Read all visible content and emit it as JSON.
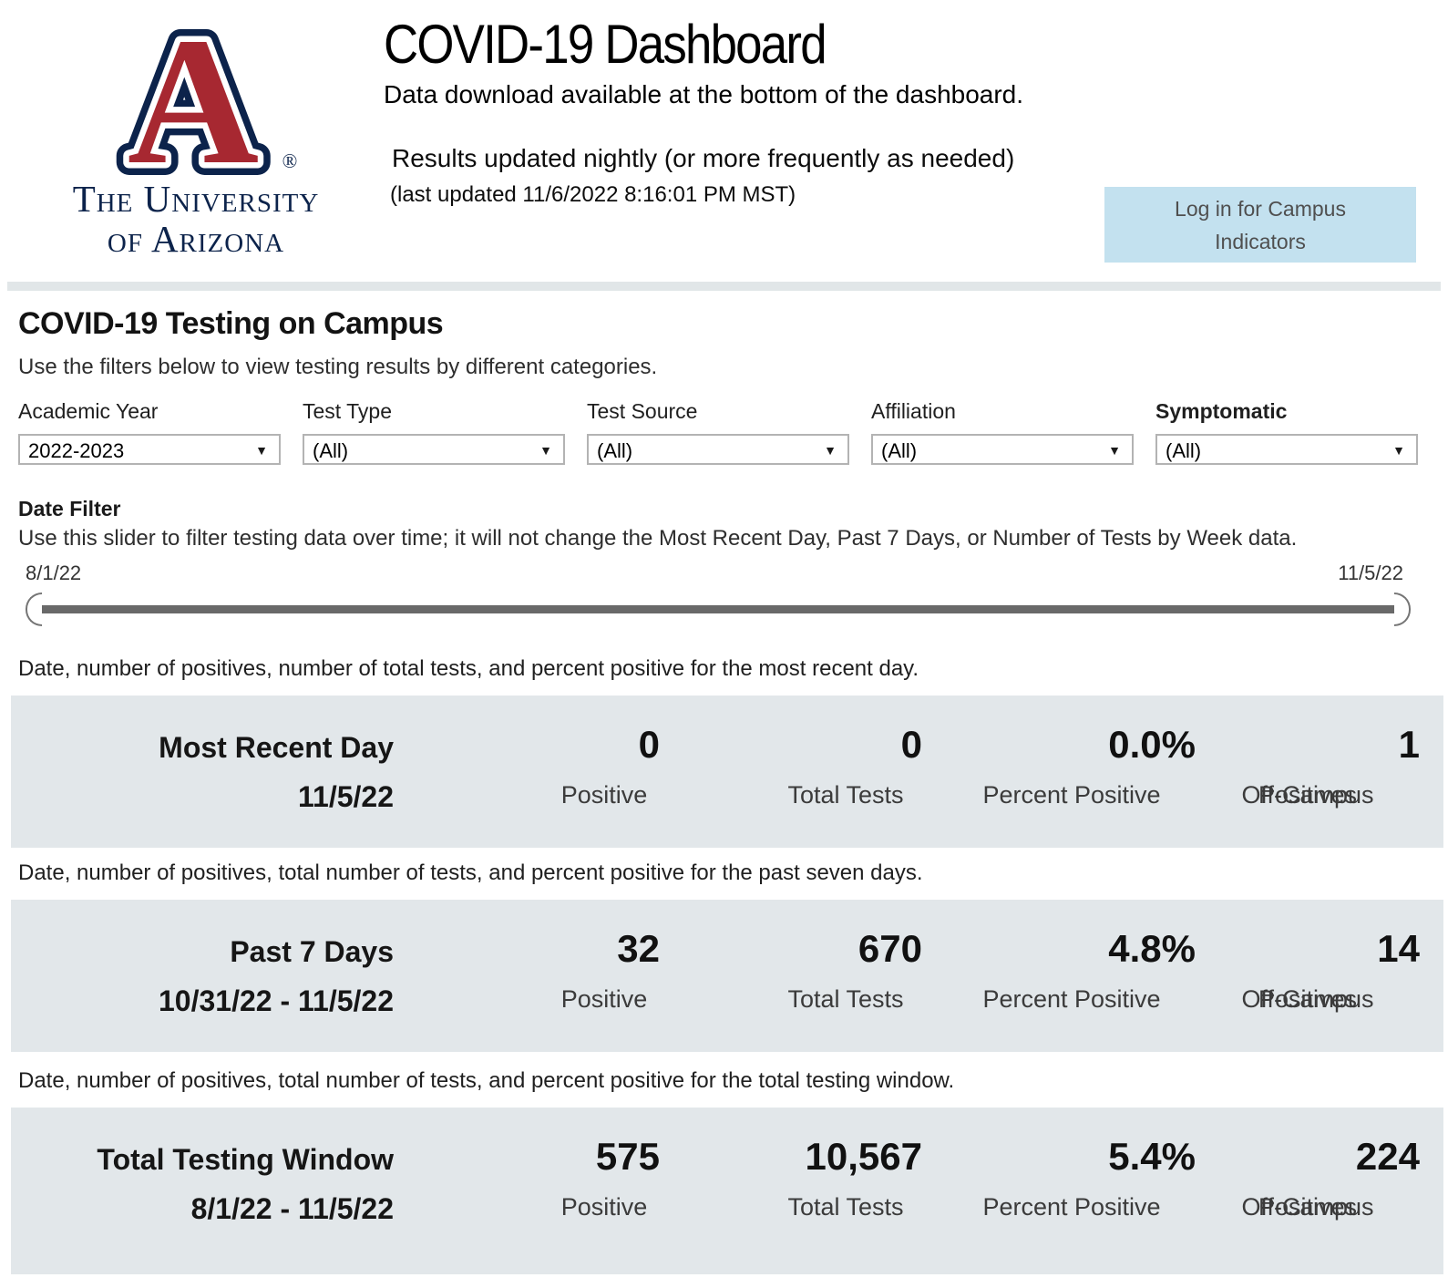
{
  "header": {
    "title": "COVID-19 Dashboard",
    "subtitle": "Data download available at the bottom of the dashboard.",
    "update_note": "Results updated nightly (or more frequently as needed)",
    "last_updated": "(last updated 11/6/2022 8:16:01 PM MST)",
    "login_button": "Log in for Campus Indicators",
    "logo": {
      "letter": "A",
      "registered": "®",
      "org_line1": "The University",
      "org_line2": "of Arizona"
    }
  },
  "icons": {
    "dropdown_arrow": "▼"
  },
  "colors": {
    "ua_navy": "#0c234b",
    "ua_red": "#a72831",
    "band_background": "#e2e7ea",
    "login_button_background": "#c3e1ef",
    "slider_track": "#696969"
  },
  "testing_section": {
    "title": "COVID-19 Testing on Campus",
    "intro": "Use the filters below to view testing results by different categories."
  },
  "filters": [
    {
      "label": "Academic Year",
      "value": "2022-2023"
    },
    {
      "label": "Test Type",
      "value": "(All)"
    },
    {
      "label": "Test Source",
      "value": "(All)"
    },
    {
      "label": "Affiliation",
      "value": "(All)"
    },
    {
      "label": "Symptomatic",
      "value": "(All)"
    }
  ],
  "date_filter": {
    "label": "Date Filter",
    "description": "Use this slider to filter testing data over time; it will not change the Most Recent Day, Past 7 Days, or Number of Tests by Week data.",
    "start_date": "8/1/22",
    "end_date": "11/5/22"
  },
  "stat_labels": {
    "positive": "Positive",
    "total_tests": "Total Tests",
    "percent_positive": "Percent Positive",
    "off_campus_line1": "Off-Campus",
    "off_campus_line2": "Positives"
  },
  "stat_rows": [
    {
      "description": "Date, number of positives, number of total tests, and percent positive for the most recent day.",
      "title": "Most Recent Day",
      "date_range": "11/5/22",
      "positive": "0",
      "total_tests": "0",
      "percent_positive": "0.0%",
      "off_campus_positives": "1"
    },
    {
      "description": "Date, number of positives, total number of tests, and percent positive for the past seven days.",
      "title": "Past 7 Days",
      "date_range": "10/31/22 - 11/5/22",
      "positive": "32",
      "total_tests": "670",
      "percent_positive": "4.8%",
      "off_campus_positives": "14"
    },
    {
      "description": "Date, number of positives, total number of tests, and percent positive for the total testing window.",
      "title": "Total Testing Window",
      "date_range": "8/1/22 - 11/5/22",
      "positive": "575",
      "total_tests": "10,567",
      "percent_positive": "5.4%",
      "off_campus_positives": "224"
    }
  ]
}
